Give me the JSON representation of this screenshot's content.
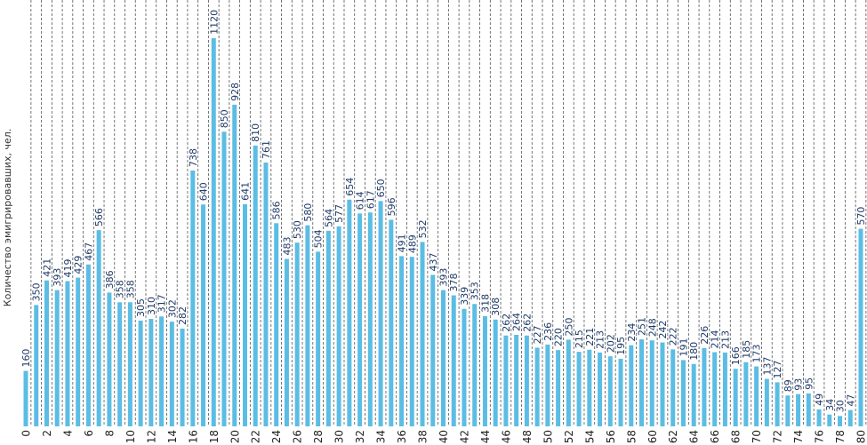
{
  "chart_data": {
    "type": "bar",
    "y_label": "Количество эмигрировавших, чел.",
    "categories": [
      "0",
      null,
      "2",
      null,
      "4",
      null,
      "6",
      null,
      "8",
      null,
      "10",
      null,
      "12",
      null,
      "14",
      null,
      "16",
      null,
      "18",
      null,
      "20",
      null,
      "22",
      null,
      "24",
      null,
      "26",
      null,
      "28",
      null,
      "30",
      null,
      "32",
      null,
      "34",
      null,
      "36",
      null,
      "38",
      null,
      "40",
      null,
      "42",
      null,
      "44",
      null,
      "46",
      null,
      "48",
      null,
      "50",
      null,
      "52",
      null,
      "54",
      null,
      "56",
      null,
      "58",
      null,
      "60",
      null,
      "62",
      null,
      "64",
      null,
      "66",
      null,
      "68",
      null,
      "70",
      null,
      "72",
      null,
      "74",
      null,
      "76",
      null,
      "78",
      null,
      "80"
    ],
    "values": [
      160,
      350,
      421,
      393,
      419,
      429,
      467,
      566,
      386,
      358,
      358,
      305,
      310,
      317,
      302,
      282,
      738,
      640,
      1120,
      850,
      928,
      641,
      810,
      761,
      586,
      483,
      530,
      580,
      504,
      564,
      577,
      654,
      614,
      617,
      650,
      596,
      491,
      489,
      532,
      437,
      393,
      378,
      339,
      353,
      318,
      308,
      262,
      264,
      262,
      227,
      236,
      220,
      250,
      215,
      221,
      213,
      202,
      195,
      234,
      251,
      248,
      242,
      222,
      191,
      180,
      226,
      214,
      213,
      166,
      185,
      173,
      137,
      127,
      89,
      93,
      95,
      49,
      34,
      30,
      47,
      570
    ],
    "color": "#5bbde4",
    "label_color": "#1f3a68",
    "ylim": [
      0,
      1230
    ],
    "grid": true
  }
}
